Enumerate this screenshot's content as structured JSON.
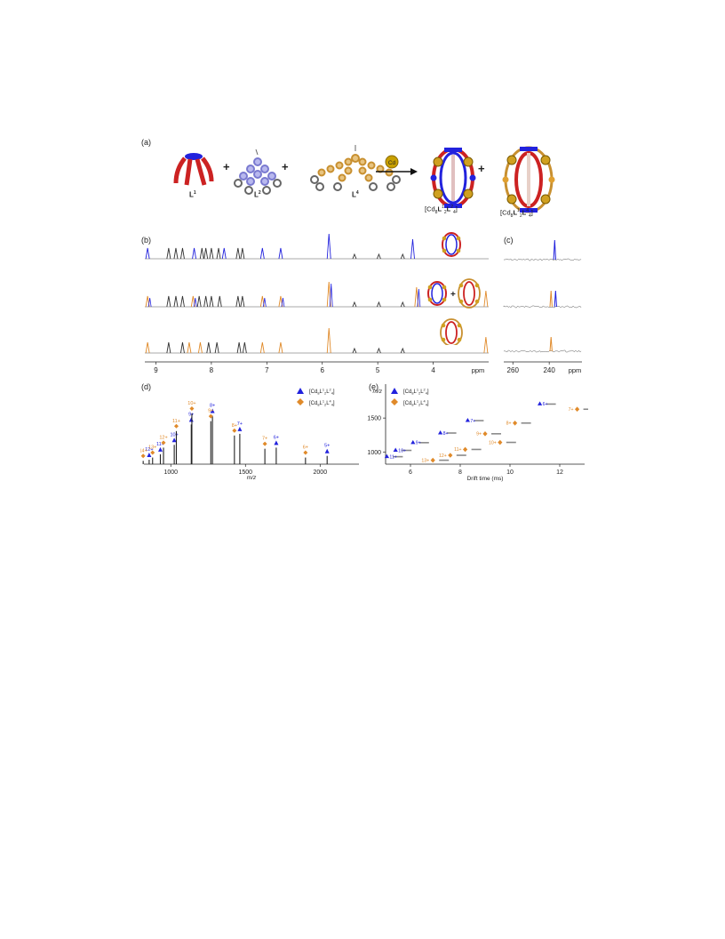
{
  "panels": {
    "a": "(a)",
    "b": "(b)",
    "c": "(c)",
    "d": "(d)",
    "e": "(e)"
  },
  "scheme": {
    "ligands": [
      "L1",
      "L2",
      "L4"
    ],
    "reagent": "Cd",
    "products": [
      "[Cd8L12L24]",
      "[Cd8L12L44]"
    ],
    "plus": "+"
  },
  "colors": {
    "blue": "#2222dd",
    "orange": "#e08a2a",
    "black": "#333333",
    "gray": "#8a8a8a",
    "red": "#cc2222",
    "gold": "#d8a030"
  },
  "nmr": {
    "xaxis_label": "ppm",
    "ticks": [
      "9",
      "8",
      "7",
      "6",
      "5",
      "4"
    ],
    "c_ticks": [
      "260",
      "240"
    ],
    "c_label": "ppm"
  },
  "ms": {
    "xlabel": "m/z",
    "ticks": [
      "1000",
      "1500",
      "2000"
    ],
    "legend": [
      {
        "symbol": "triangle",
        "label": "[Cd8L12L24]"
      },
      {
        "symbol": "diamond",
        "label": "[Cd8L12L44]"
      }
    ]
  },
  "ims": {
    "xlabel": "Drift time (ms)",
    "ylabel": "m/z",
    "xticks": [
      "6",
      "8",
      "10",
      "12"
    ],
    "yticks": [
      "1000",
      "1500"
    ],
    "legend": [
      {
        "symbol": "triangle",
        "label": "[Cd8L12L24]"
      },
      {
        "symbol": "diamond",
        "label": "[Cd8L12L44]"
      }
    ]
  },
  "chart_data": [
    {
      "type": "line",
      "title": "",
      "xlabel": "ppm",
      "ylabel": "",
      "xlim": [
        9.2,
        3.0
      ],
      "series": [
        {
          "name": "",
          "peaks_ppm": [
            9.15,
            8.77,
            8.64,
            8.52,
            8.31,
            8.17,
            8.1,
            8.0,
            7.87,
            7.77,
            7.52,
            7.44,
            7.08,
            6.75,
            5.88,
            5.42,
            4.98,
            4.55,
            4.37
          ]
        },
        {
          "name": "",
          "peaks_ppm": [
            9.15,
            8.77,
            8.64,
            8.52,
            8.33,
            8.22,
            8.1,
            8.0,
            7.85,
            7.52,
            7.44,
            7.08,
            6.75,
            5.88,
            5.42,
            4.98,
            4.55,
            4.3,
            3.05
          ]
        },
        {
          "name": "",
          "peaks_ppm": [
            9.15,
            8.77,
            8.52,
            8.4,
            8.2,
            8.05,
            7.9,
            7.5,
            7.4,
            7.08,
            6.75,
            5.88,
            5.42,
            4.98,
            4.55,
            3.05
          ]
        }
      ]
    },
    {
      "type": "bar",
      "title": "",
      "xlabel": "m/z",
      "ylabel": "",
      "xlim": [
        820,
        2260
      ],
      "series": [
        {
          "name": "[Cd8L12L24]",
          "peaks": [
            {
              "charge": "12+",
              "mz": 855,
              "intensity": 0.08
            },
            {
              "charge": "11+",
              "mz": 930,
              "intensity": 0.18
            },
            {
              "charge": "10+",
              "mz": 1023,
              "intensity": 0.35
            },
            {
              "charge": "9+",
              "mz": 1137,
              "intensity": 0.72
            },
            {
              "charge": "8+",
              "mz": 1279,
              "intensity": 0.88
            },
            {
              "charge": "7+",
              "mz": 1462,
              "intensity": 0.55
            },
            {
              "charge": "6+",
              "mz": 1706,
              "intensity": 0.3
            },
            {
              "charge": "5+",
              "mz": 2047,
              "intensity": 0.15
            }
          ]
        },
        {
          "name": "[Cd8L12L44]",
          "peaks": [
            {
              "charge": "14+",
              "mz": 815,
              "intensity": 0.06
            },
            {
              "charge": "13+",
              "mz": 878,
              "intensity": 0.12
            },
            {
              "charge": "12+",
              "mz": 951,
              "intensity": 0.3
            },
            {
              "charge": "11+",
              "mz": 1037,
              "intensity": 0.6
            },
            {
              "charge": "10+",
              "mz": 1141,
              "intensity": 0.92
            },
            {
              "charge": "9+",
              "mz": 1268,
              "intensity": 0.78
            },
            {
              "charge": "8+",
              "mz": 1426,
              "intensity": 0.52
            },
            {
              "charge": "7+",
              "mz": 1630,
              "intensity": 0.28
            },
            {
              "charge": "6+",
              "mz": 1902,
              "intensity": 0.12
            }
          ]
        }
      ]
    },
    {
      "type": "scatter",
      "title": "",
      "xlabel": "Drift time (ms)",
      "ylabel": "m/z",
      "xlim": [
        5.0,
        13.0
      ],
      "ylim": [
        820,
        2000
      ],
      "series": [
        {
          "name": "[Cd8L12L24]",
          "points": [
            {
              "charge": "11+",
              "x": 5.05,
              "y": 930
            },
            {
              "charge": "10+",
              "x": 5.4,
              "y": 1023
            },
            {
              "charge": "9+",
              "x": 6.1,
              "y": 1137
            },
            {
              "charge": "8+",
              "x": 7.2,
              "y": 1279
            },
            {
              "charge": "7+",
              "x": 8.3,
              "y": 1462
            },
            {
              "charge": "6+",
              "x": 11.2,
              "y": 1706
            }
          ]
        },
        {
          "name": "[Cd8L12L44]",
          "points": [
            {
              "charge": "13+",
              "x": 6.9,
              "y": 878
            },
            {
              "charge": "12+",
              "x": 7.6,
              "y": 951
            },
            {
              "charge": "11+",
              "x": 8.2,
              "y": 1037
            },
            {
              "charge": "10+",
              "x": 9.6,
              "y": 1141
            },
            {
              "charge": "9+",
              "x": 9.0,
              "y": 1268
            },
            {
              "charge": "8+",
              "x": 10.2,
              "y": 1426
            },
            {
              "charge": "7+",
              "x": 12.7,
              "y": 1630
            }
          ]
        }
      ]
    }
  ]
}
